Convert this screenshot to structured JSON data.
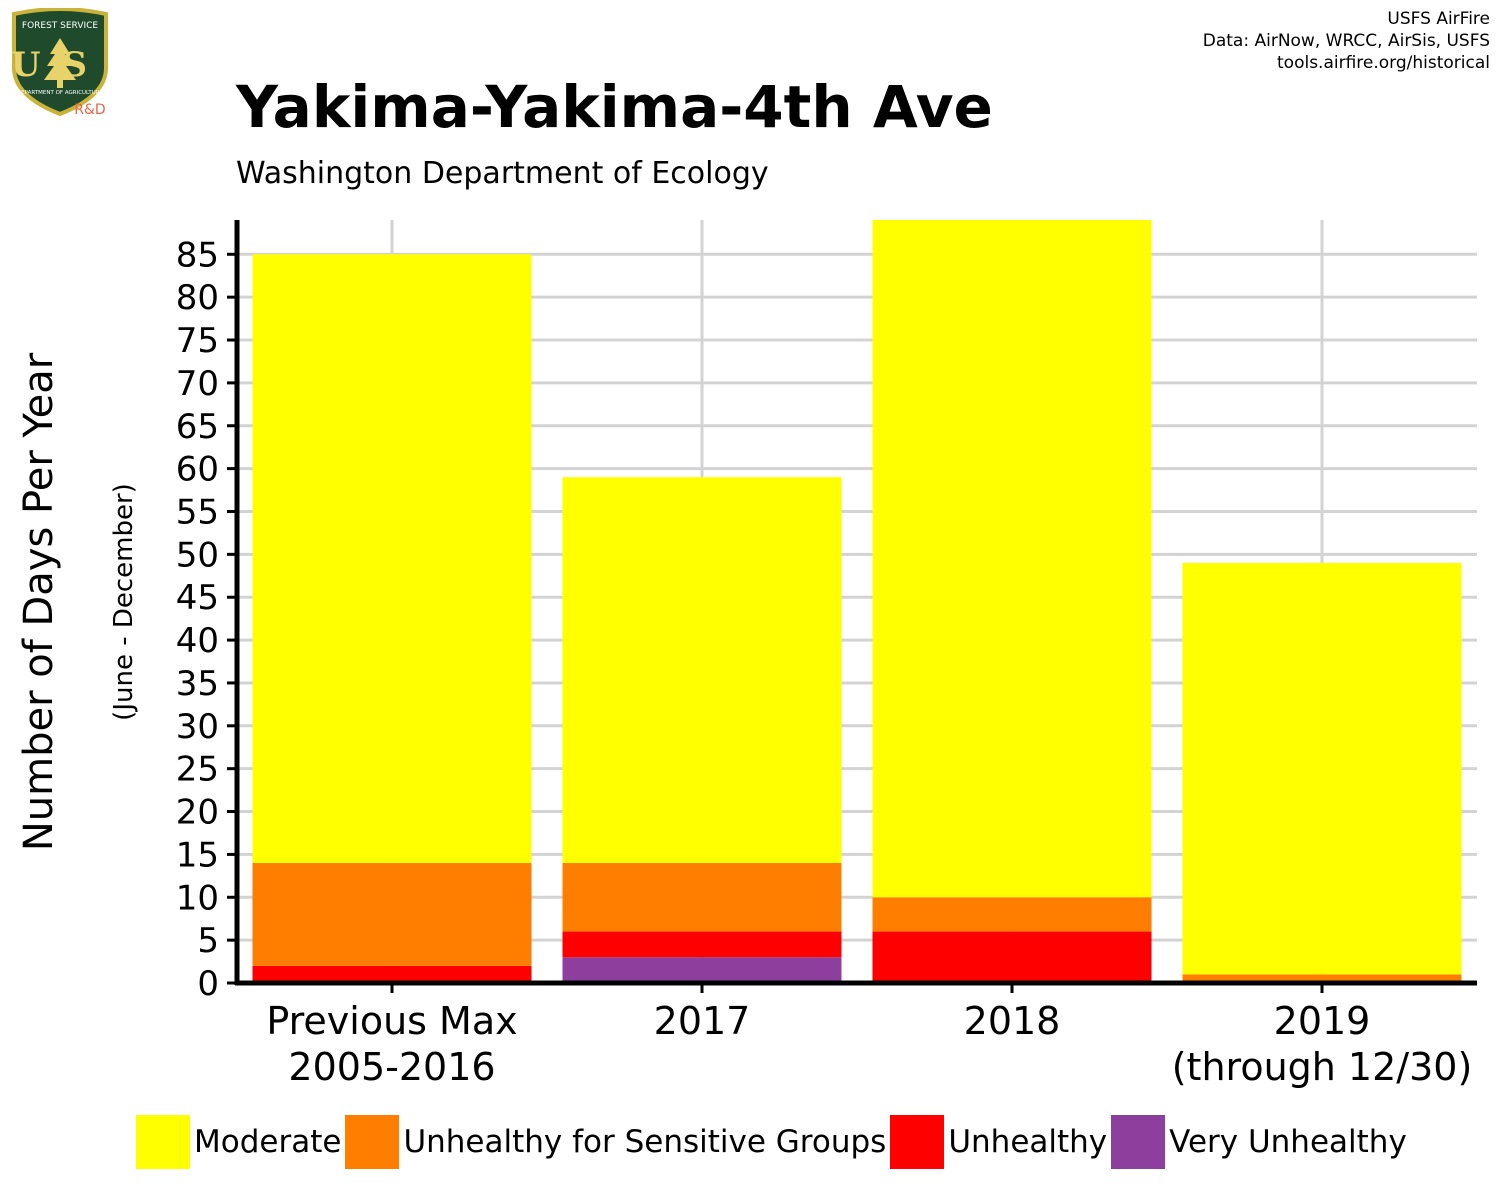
{
  "header": {
    "title": "Yakima-Yakima-4th Ave",
    "subtitle": "Washington Department of Ecology",
    "credits": [
      "USFS AirFire",
      "Data: AirNow, WRCC, AirSis, USFS",
      "tools.airfire.org/historical"
    ]
  },
  "logo": {
    "top_text": "FOREST SERVICE",
    "letters": "US",
    "bottom_text": "DEPARTMENT OF AGRICULTURE",
    "badge": "R&D",
    "colors": {
      "shield": "#1f4a2c",
      "border": "#c9b33a",
      "badge": "#e8664a"
    }
  },
  "chart_data": {
    "type": "bar",
    "stacked": true,
    "categories": [
      [
        "Previous Max",
        "2005-2016"
      ],
      [
        "2017"
      ],
      [
        "2018"
      ],
      [
        "2019",
        "(through 12/30)"
      ]
    ],
    "series": [
      {
        "name": "Very Unhealthy",
        "color": "#8c3f9d",
        "values": [
          0,
          3,
          0,
          0
        ]
      },
      {
        "name": "Unhealthy",
        "color": "#ff0000",
        "values": [
          2,
          3,
          6,
          0
        ]
      },
      {
        "name": "Unhealthy for Sensitive Groups",
        "color": "#ff7e00",
        "values": [
          12,
          8,
          4,
          1
        ]
      },
      {
        "name": "Moderate",
        "color": "#ffff00",
        "values": [
          71,
          45,
          79,
          48
        ]
      }
    ],
    "legend_order": [
      "Moderate",
      "Unhealthy for Sensitive Groups",
      "Unhealthy",
      "Very Unhealthy"
    ],
    "ylabel": "Number of Days Per Year",
    "ylabel_sub": "(June - December)",
    "yticks": [
      0,
      5,
      10,
      15,
      20,
      25,
      30,
      35,
      40,
      45,
      50,
      55,
      60,
      65,
      70,
      75,
      80,
      85
    ],
    "ylim": [
      0,
      89
    ],
    "grid": true,
    "legend_position": "bottom",
    "grid_color": "#d3d3d3"
  }
}
